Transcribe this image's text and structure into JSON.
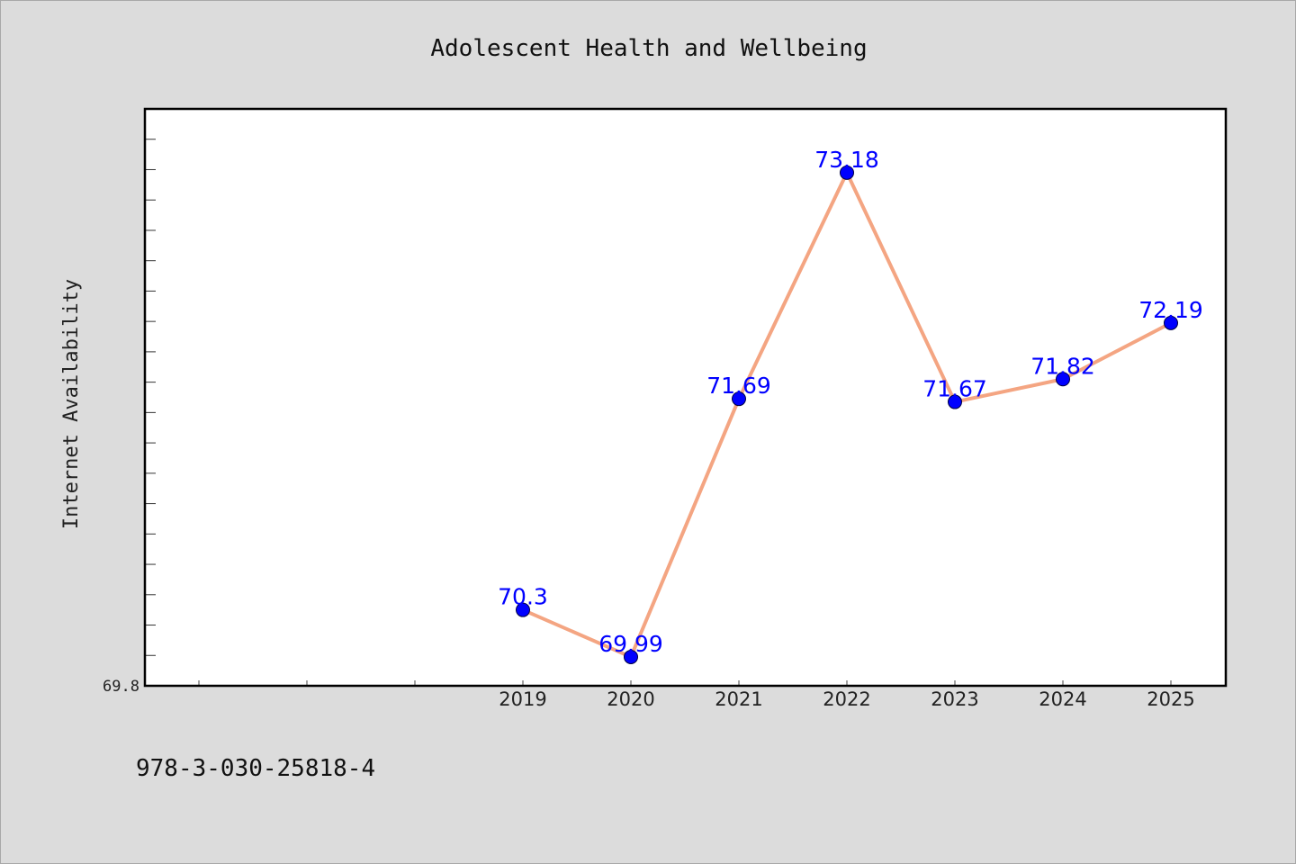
{
  "chart_data": {
    "type": "line",
    "title": "Adolescent Health and Wellbeing",
    "xlabel": "",
    "ylabel": "Internet Availability",
    "x": [
      "2019",
      "2020",
      "2021",
      "2022",
      "2023",
      "2024",
      "2025"
    ],
    "y_tick_labels": [
      "69.8"
    ],
    "series": [
      {
        "values": [
          70.3,
          69.99,
          71.69,
          73.18,
          71.67,
          71.82,
          72.19
        ],
        "data_labels": [
          "70.3",
          "69.99",
          "71.69",
          "73.18",
          "71.67",
          "71.82",
          "72.19"
        ],
        "line_color": "#f4a582",
        "marker_color": "#0000ff"
      }
    ],
    "xlim_categories": 10,
    "ylim": [
      69.8,
      73.6
    ],
    "grid": false,
    "legend": "none",
    "label_color": "#0000ff",
    "plot_background": "#ffffff",
    "page_background": "#dcdcdc"
  },
  "footer": {
    "text": "978-3-030-25818-4"
  }
}
